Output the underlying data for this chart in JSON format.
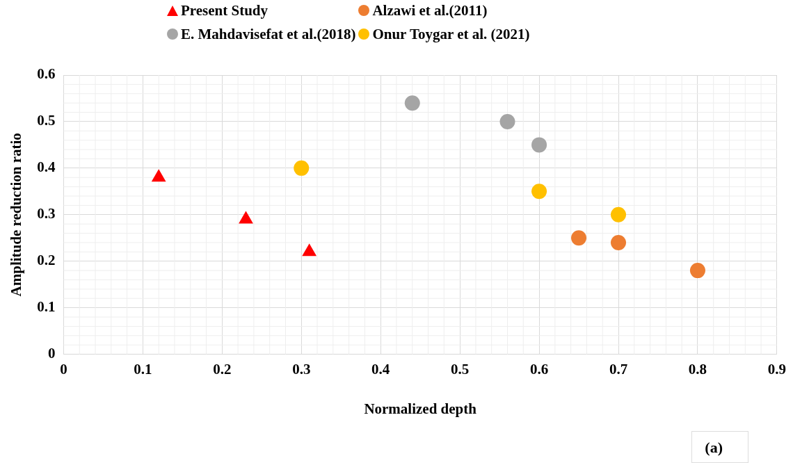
{
  "chart_data": {
    "type": "scatter",
    "xlabel": "Normalized depth",
    "ylabel": "Amplitude reduction ratio",
    "xlim": [
      0,
      0.9
    ],
    "xticks": [
      0,
      0.1,
      0.2,
      0.3,
      0.4,
      0.5,
      0.6,
      0.7,
      0.8,
      0.9
    ],
    "ylim": [
      0,
      0.6
    ],
    "yticks": [
      0,
      0.1,
      0.2,
      0.3,
      0.4,
      0.5,
      0.6
    ],
    "grid": true,
    "legend": "top",
    "annotations": [
      "(a)"
    ],
    "series": [
      {
        "name": "Present Study",
        "color": "#ff0000",
        "marker": "triangle",
        "x": [
          0.12,
          0.23,
          0.31
        ],
        "values": [
          0.38,
          0.29,
          0.22
        ]
      },
      {
        "name": "Alzawi et al.(2011)",
        "color": "#ed7d31",
        "marker": "circle",
        "x": [
          0.65,
          0.7,
          0.8
        ],
        "values": [
          0.25,
          0.24,
          0.18
        ]
      },
      {
        "name": "E. Mahdavisefat et al.(2018)",
        "color": "#a5a5a5",
        "marker": "circle",
        "x": [
          0.44,
          0.56,
          0.6
        ],
        "values": [
          0.54,
          0.5,
          0.45
        ]
      },
      {
        "name": "Onur Toygar et al. (2021)",
        "color": "#ffc000",
        "marker": "circle",
        "x": [
          0.3,
          0.6,
          0.7
        ],
        "values": [
          0.4,
          0.35,
          0.3
        ]
      }
    ]
  }
}
